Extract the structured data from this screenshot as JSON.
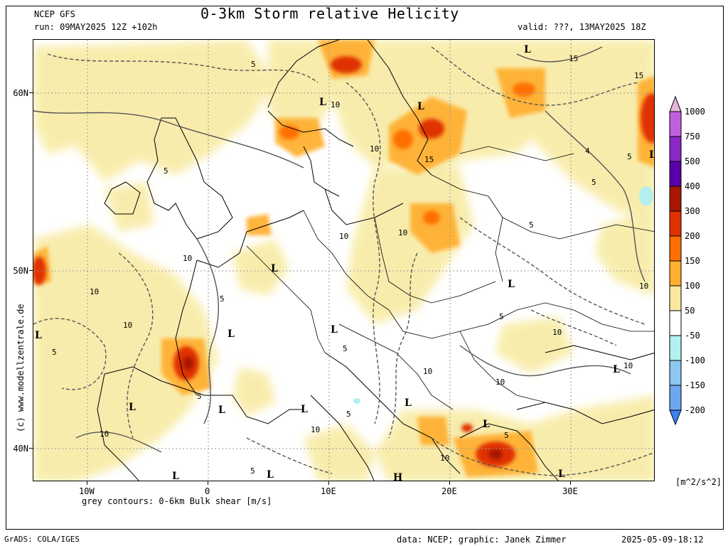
{
  "header": {
    "model": "NCEP GFS",
    "run": "run: 09MAY2025 12Z +102h",
    "title": "0-3km Storm relative Helicity",
    "valid": "valid: ???, 13MAY2025 18Z"
  },
  "axes": {
    "lat_labels": [
      "60N",
      "50N",
      "40N"
    ],
    "lon_labels": [
      "10W",
      "0",
      "10E",
      "20E",
      "30E"
    ]
  },
  "map": {
    "contour_labels": [
      "5",
      "10",
      "15",
      "4"
    ],
    "low_marker": "L",
    "high_marker": "H"
  },
  "colorbar": {
    "unit": "[m^2/s^2]",
    "levels": [
      "1000",
      "750",
      "500",
      "400",
      "300",
      "200",
      "150",
      "100",
      "50",
      "-50",
      "-100",
      "-150",
      "-200"
    ],
    "colors": [
      "#e6b3d9",
      "#c060e0",
      "#8a28c8",
      "#5a00a8",
      "#a81800",
      "#e03200",
      "#ff7000",
      "#ffb030",
      "#f8e8a0",
      "#ffffff",
      "#b4f0f0",
      "#8cc8f0",
      "#6ea6f0",
      "#3c82f0"
    ]
  },
  "footer": {
    "contour_note": "grey contours: 0-6km Bulk shear [m/s]",
    "grads": "GrADS: COLA/IGES",
    "credit": "data: NCEP; graphic: Janek Zimmer",
    "timestamp": "2025-05-09-18:12",
    "side_credit": "(c) www.modellzentrale.de"
  }
}
